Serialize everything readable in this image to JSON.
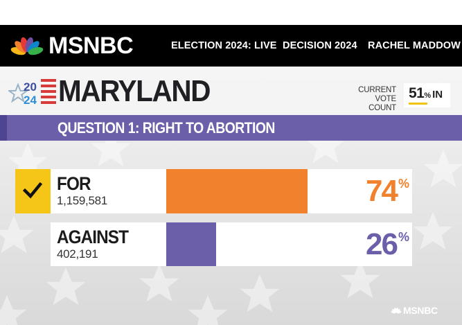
{
  "brand": {
    "name": "MSNBC",
    "peacock_colors": [
      "#f7b719",
      "#f2812d",
      "#e23a37",
      "#6d4fa3",
      "#0f86c9",
      "#39b14a"
    ]
  },
  "nav": {
    "items": [
      {
        "label": "ELECTION 2024: LIVE"
      },
      {
        "label": "DECISION 2024"
      },
      {
        "label": "RACHEL MADDOW"
      }
    ]
  },
  "graphic": {
    "year_top": "20",
    "year_bottom": "24",
    "state": "MARYLAND",
    "vote_count_label_line1": "CURRENT",
    "vote_count_label_line2": "VOTE COUNT",
    "vote_count_value": "51",
    "vote_count_pct": "%",
    "vote_count_suffix": "IN",
    "vote_count_fraction": 0.51,
    "question": "QUESTION 1: RIGHT TO ABORTION",
    "choices": [
      {
        "name": "FOR",
        "votes": "1,159,581",
        "percent": "74",
        "share": 0.74,
        "winner": true,
        "color": "#f2812d"
      },
      {
        "name": "AGAINST",
        "votes": "402,191",
        "percent": "26",
        "share": 0.26,
        "winner": false,
        "color": "#6a5fa8"
      }
    ],
    "percent_sign": "%",
    "footer_brand": "MSNBC"
  },
  "colors": {
    "question_bar": "#6a5fa8",
    "check_box": "#f5c518",
    "for_color": "#f2812d",
    "against_color": "#6a5fa8"
  }
}
